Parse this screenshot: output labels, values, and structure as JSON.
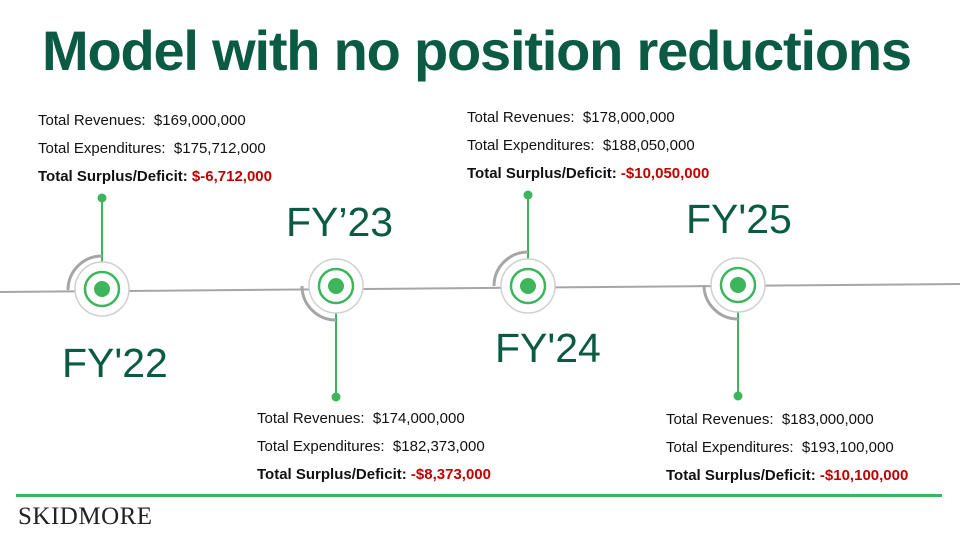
{
  "title": "Model with no position reductions",
  "colors": {
    "title": "#0b5a43",
    "accent": "#3cb55b",
    "negative": "#c00000",
    "ring": "#a6a6a6"
  },
  "milestones": [
    {
      "label": "FY'22",
      "revenues_label": "Total Revenues:",
      "revenues": "$169,000,000",
      "expenditures_label": "Total Expenditures:",
      "expenditures": "$175,712,000",
      "surplus_label": "Total Surplus/Deficit:",
      "surplus": "$-6,712,000"
    },
    {
      "label": "FY’23",
      "revenues_label": "Total Revenues:",
      "revenues": "$174,000,000",
      "expenditures_label": "Total Expenditures:",
      "expenditures": "$182,373,000",
      "surplus_label": "Total Surplus/Deficit:",
      "surplus": "-$8,373,000"
    },
    {
      "label": "FY'24",
      "revenues_label": "Total Revenues:",
      "revenues": "$178,000,000",
      "expenditures_label": "Total Expenditures:",
      "expenditures": "$188,050,000",
      "surplus_label": "Total Surplus/Deficit:",
      "surplus": "-$10,050,000"
    },
    {
      "label": "FY'25",
      "revenues_label": "Total Revenues:",
      "revenues": "$183,000,000",
      "expenditures_label": "Total Expenditures:",
      "expenditures": "$193,100,000",
      "surplus_label": "Total Surplus/Deficit:",
      "surplus": "-$10,100,000"
    }
  ],
  "footer": {
    "logo_text": "SKIDMORE"
  }
}
